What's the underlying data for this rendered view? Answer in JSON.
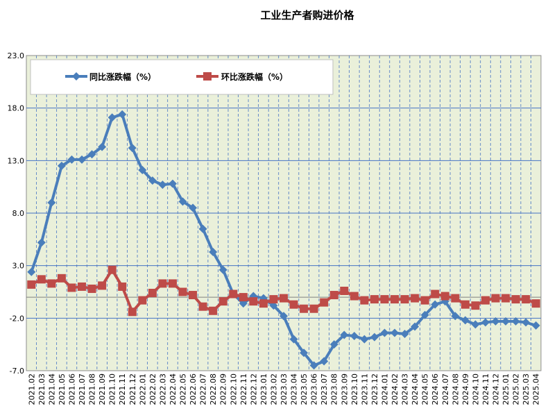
{
  "chart_data": {
    "type": "line",
    "title": "工业生产者购进价格",
    "x": [
      "2021.02",
      "2021.03",
      "2021.04",
      "2021.05",
      "2021.06",
      "2021.07",
      "2021.08",
      "2021.09",
      "2021.10",
      "2021.11",
      "2021.12",
      "2022.01",
      "2022.02",
      "2022.03",
      "2022.04",
      "2022.05",
      "2022.06",
      "2022.07",
      "2022.08",
      "2022.09",
      "2022.10",
      "2022.11",
      "2022.12",
      "2023.01",
      "2023.02",
      "2023.03",
      "2023.04",
      "2023.05",
      "2023.06",
      "2023.07",
      "2023.08",
      "2023.09",
      "2023.10",
      "2023.11",
      "2023.12",
      "2024.01",
      "2024.02",
      "2024.03",
      "2024.04",
      "2024.05",
      "2024.06",
      "2024.07",
      "2024.08",
      "2024.09",
      "2024.10",
      "2024.11",
      "2024.12",
      "2025.01",
      "2025.02",
      "2025.03",
      "2025.04"
    ],
    "yticks": [
      "23.0",
      "18.0",
      "13.0",
      "8.0",
      "3.0",
      "-2.0",
      "-7.0"
    ],
    "ylim": [
      -7,
      23
    ],
    "grid": true,
    "legend_position": "top-left",
    "series": [
      {
        "name": "同比涨跌幅（%）",
        "color": "#4a7ebb",
        "marker": "diamond",
        "values": [
          2.4,
          5.2,
          9.0,
          12.5,
          13.1,
          13.1,
          13.6,
          14.3,
          17.1,
          17.4,
          14.2,
          12.1,
          11.1,
          10.7,
          10.8,
          9.1,
          8.5,
          6.5,
          4.3,
          2.6,
          0.3,
          -0.6,
          0.1,
          -0.1,
          -0.8,
          -1.8,
          -4.0,
          -5.3,
          -6.5,
          -6.1,
          -4.5,
          -3.6,
          -3.7,
          -4.0,
          -3.8,
          -3.4,
          -3.4,
          -3.5,
          -2.8,
          -1.7,
          -0.7,
          -0.4,
          -1.8,
          -2.2,
          -2.6,
          -2.4,
          -2.3,
          -2.3,
          -2.3,
          -2.4,
          -2.7
        ]
      },
      {
        "name": "环比涨跌幅（%）",
        "color": "#be4b48",
        "marker": "square",
        "values": [
          1.2,
          1.7,
          1.3,
          1.8,
          0.9,
          1.0,
          0.8,
          1.1,
          2.6,
          1.0,
          -1.4,
          -0.3,
          0.4,
          1.3,
          1.3,
          0.5,
          0.2,
          -0.9,
          -1.3,
          -0.4,
          0.3,
          0.0,
          -0.4,
          -0.6,
          -0.2,
          -0.1,
          -0.7,
          -1.1,
          -1.1,
          -0.5,
          0.2,
          0.6,
          0.1,
          -0.3,
          -0.2,
          -0.2,
          -0.2,
          -0.2,
          -0.1,
          -0.3,
          0.3,
          0.1,
          -0.1,
          -0.7,
          -0.8,
          -0.3,
          -0.1,
          -0.1,
          -0.2,
          -0.2,
          -0.6
        ]
      }
    ]
  }
}
